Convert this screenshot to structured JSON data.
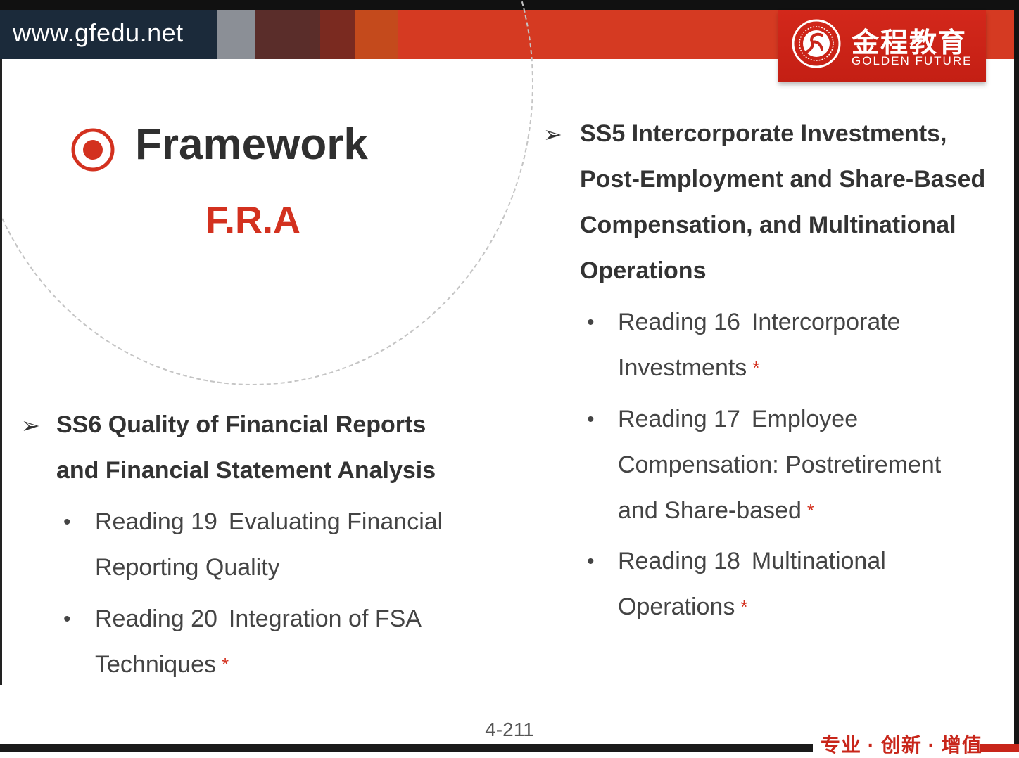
{
  "header": {
    "site_url": "www.gfedu.net",
    "band_colors": [
      "#1b2a3a",
      "#8b8f96",
      "#5a2d2a",
      "#7a2a20",
      "#c44a1c",
      "#d53a22"
    ],
    "logo": {
      "cn_name": "金程教育",
      "en_name": "GOLDEN FUTURE",
      "brand_color": "#c8261a"
    }
  },
  "title": {
    "heading": "Framework",
    "subject": "F.R.A",
    "accent_color": "#d3311f"
  },
  "sections": [
    {
      "id": "ss5",
      "lines": [
        "SS5 Intercorporate Investments,",
        "Post-Employment and Share-Based",
        "Compensation, and Multinational",
        "Operations"
      ],
      "readings": [
        {
          "number": "Reading 16",
          "lines": [
            "Intercorporate",
            "Investments"
          ],
          "starred": true
        },
        {
          "number": "Reading 17",
          "lines": [
            "Employee",
            "Compensation: Postretirement",
            "and Share-based"
          ],
          "starred": true
        },
        {
          "number": "Reading 18",
          "lines": [
            "Multinational",
            "Operations"
          ],
          "starred": true
        }
      ]
    },
    {
      "id": "ss6",
      "lines": [
        "SS6 Quality of Financial Reports",
        "and Financial Statement Analysis"
      ],
      "readings": [
        {
          "number": "Reading 19",
          "lines": [
            "Evaluating Financial",
            "Reporting Quality"
          ],
          "starred": false
        },
        {
          "number": "Reading 20",
          "lines": [
            "Integration of FSA",
            "Techniques"
          ],
          "starred": true
        }
      ]
    }
  ],
  "bullet_symbols": {
    "arrow": "➢",
    "dot": "•",
    "star": "*"
  },
  "footer": {
    "page_number": "4-211",
    "slogan": "专业 · 创新 · 增值"
  }
}
